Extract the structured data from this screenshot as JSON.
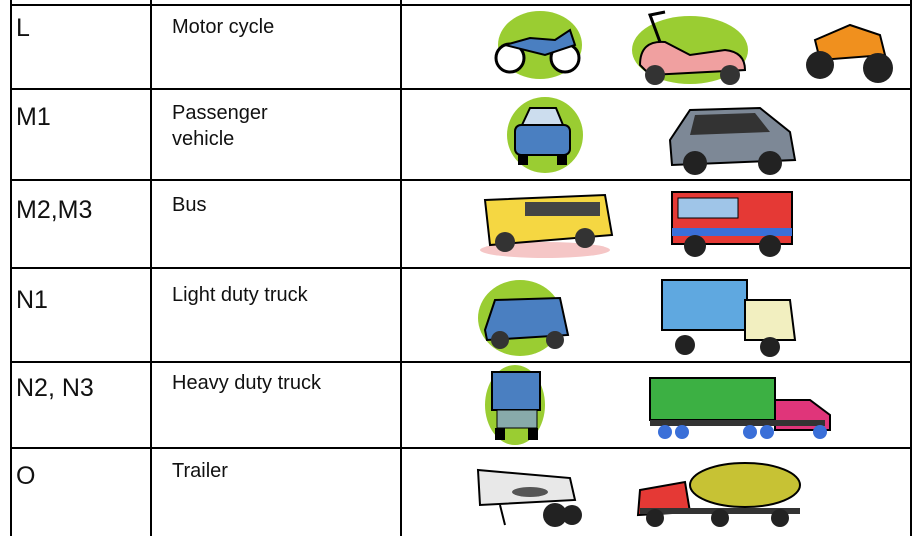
{
  "table": {
    "rows": [
      [
        "L",
        "Motor cycle"
      ],
      [
        "M1",
        "Passenger vehicle"
      ],
      [
        "M2,M3",
        "Bus"
      ],
      [
        "N1",
        "Light duty truck"
      ],
      [
        "N2, N3",
        "Heavy duty truck"
      ],
      [
        "O",
        "Trailer"
      ]
    ]
  }
}
